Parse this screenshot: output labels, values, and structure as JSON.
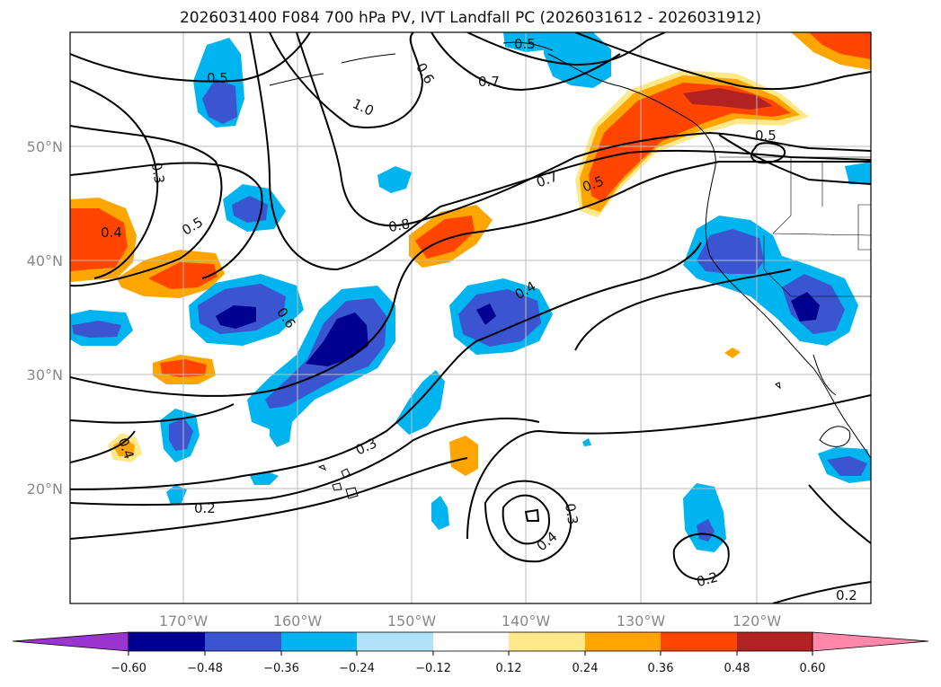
{
  "title": "2026031400 F084 700 hPa PV, IVT Landfall PC (2026031612 - 2026031912)",
  "lon_ticks": [
    "170°W",
    "160°W",
    "150°W",
    "140°W",
    "130°W",
    "120°W"
  ],
  "lat_ticks": [
    "50°N",
    "40°N",
    "30°N",
    "20°N"
  ],
  "contour_labels": [
    "0.5",
    "0.6",
    "1.0",
    "0.5",
    "0.7",
    "0.3",
    "0.4",
    "0.5",
    "0.8",
    "0.7",
    "0.5",
    "0.5",
    "0.4",
    "0.6",
    "0.3",
    "0.4",
    "0.2",
    "0.3",
    "0.4",
    "0.2",
    "0.2"
  ],
  "colorbar": {
    "colors": [
      "#9a35cf",
      "#000090",
      "#3a55cf",
      "#00b4f0",
      "#b0e2fa",
      "#ffffff",
      "#ffe88a",
      "#ffa500",
      "#ff4500",
      "#b22222",
      "#ff88aa"
    ],
    "labels": [
      "−0.60",
      "−0.48",
      "−0.36",
      "−0.24",
      "−0.12",
      "0.12",
      "0.24",
      "0.36",
      "0.48",
      "0.60"
    ]
  }
}
